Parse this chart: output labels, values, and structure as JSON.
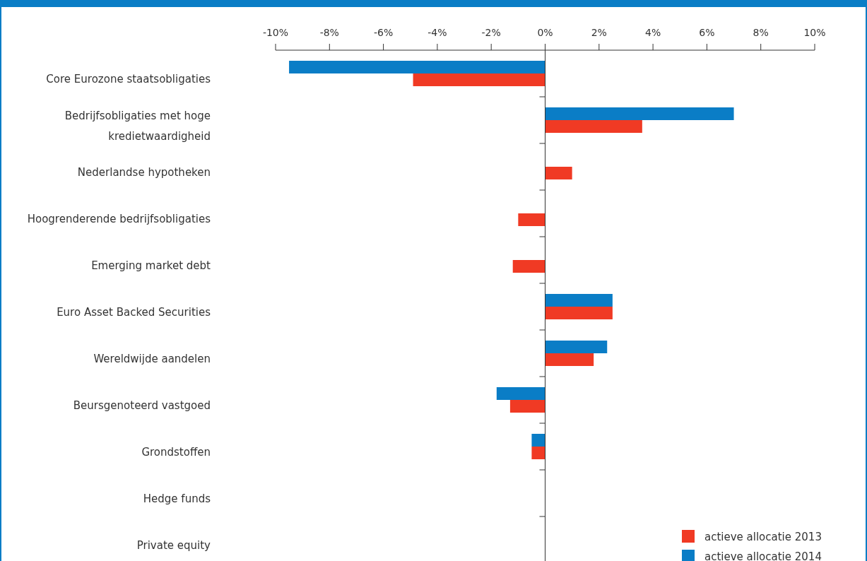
{
  "chart_data": {
    "type": "bar",
    "orientation": "horizontal",
    "categories": [
      "Core Eurozone staatsobligaties",
      "Bedrijfsobligaties met hoge kredietwaardigheid",
      "Nederlandse hypotheken",
      "Hoogrenderende bedrijfsobligaties",
      "Emerging market debt",
      "Euro Asset Backed Securities",
      "Wereldwijde aandelen",
      "Beursgenoteerd vastgoed",
      "Grondstoffen",
      "Hedge funds",
      "Private equity"
    ],
    "series": [
      {
        "name": "actieve allocatie 2013",
        "color": "#f03a24",
        "values": [
          -4.9,
          3.6,
          1.0,
          -1.0,
          -1.2,
          2.5,
          1.8,
          -1.3,
          -0.5,
          0,
          0
        ]
      },
      {
        "name": "actieve allocatie 2014",
        "color": "#0a7dc6",
        "values": [
          -9.5,
          7.0,
          null,
          null,
          null,
          2.5,
          2.3,
          -1.8,
          -0.5,
          0,
          0
        ]
      }
    ],
    "xlim": [
      -10,
      10
    ],
    "xticks": [
      {
        "value": -10,
        "label": "-10%"
      },
      {
        "value": -8,
        "label": "-8%"
      },
      {
        "value": -6,
        "label": "-6%"
      },
      {
        "value": -4,
        "label": "-4%"
      },
      {
        "value": -2,
        "label": "-2%"
      },
      {
        "value": 0,
        "label": "0%"
      },
      {
        "value": 2,
        "label": "2%"
      },
      {
        "value": 4,
        "label": "4%"
      },
      {
        "value": 6,
        "label": "6%"
      },
      {
        "value": 8,
        "label": "8%"
      },
      {
        "value": 10,
        "label": "10%"
      }
    ],
    "legend": "bottom right"
  }
}
